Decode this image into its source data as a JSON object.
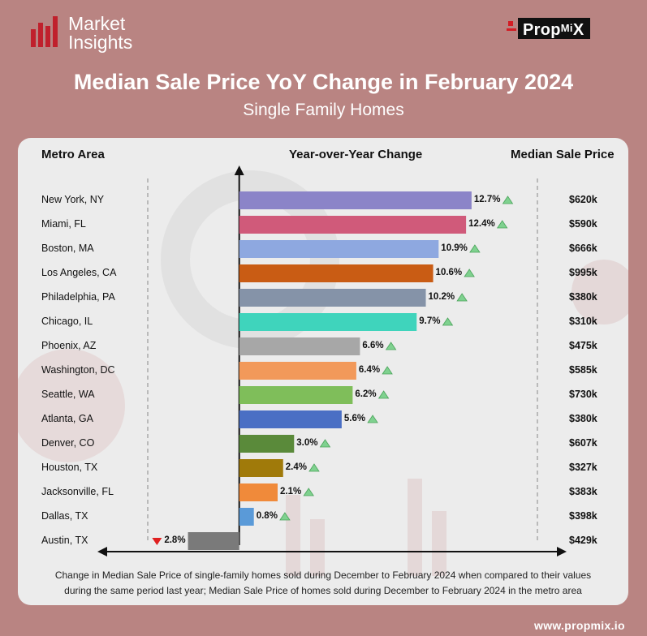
{
  "logo": {
    "line1": "Market",
    "line2": "Insights"
  },
  "brand": {
    "part1": "Prop",
    "part2": "Mi",
    "part3": "X"
  },
  "title": "Median Sale Price YoY Change in February 2024",
  "subtitle": "Single Family Homes",
  "headers": {
    "metro": "Metro Area",
    "yoy": "Year-over-Year Change",
    "price": "Median Sale Price"
  },
  "note": {
    "line1": "Change in Median Sale Price of single-family homes sold during December to February 2024 when compared to their values",
    "line2": "during the same period last year; Median Sale Price of homes sold during December to February 2024 in the metro area"
  },
  "website": "www.propmix.io",
  "colors": {
    "background": "#b98482",
    "card": "#ececec",
    "up": "#7fd18f",
    "down": "#e02020"
  },
  "chart_data": {
    "type": "bar",
    "orientation": "horizontal",
    "xlabel": "Year-over-Year Change",
    "unit": "%",
    "categories": [
      "New York, NY",
      "Miami, FL",
      "Boston, MA",
      "Los Angeles, CA",
      "Philadelphia, PA",
      "Chicago, IL",
      "Phoenix, AZ",
      "Washington, DC",
      "Seattle, WA",
      "Atlanta, GA",
      "Denver, CO",
      "Houston, TX",
      "Jacksonville, FL",
      "Dallas, TX",
      "Austin, TX"
    ],
    "values": [
      12.7,
      12.4,
      10.9,
      10.6,
      10.2,
      9.7,
      6.6,
      6.4,
      6.2,
      5.6,
      3.0,
      2.4,
      2.1,
      0.8,
      -2.8
    ],
    "labels": [
      "12.7%",
      "12.4%",
      "10.9%",
      "10.6%",
      "10.2%",
      "9.7%",
      "6.6%",
      "6.4%",
      "6.2%",
      "5.6%",
      "3.0%",
      "2.4%",
      "2.1%",
      "0.8%",
      "2.8%"
    ],
    "median_sale_price": [
      "$620k",
      "$590k",
      "$666k",
      "$995k",
      "$380k",
      "$310k",
      "$475k",
      "$585k",
      "$730k",
      "$380k",
      "$607k",
      "$327k",
      "$383k",
      "$398k",
      "$429k"
    ],
    "bar_colors": [
      "#8b84c8",
      "#d05a7a",
      "#8ea8e0",
      "#c95c14",
      "#8593a8",
      "#3fd4bc",
      "#a7a7a7",
      "#f2995a",
      "#7fbe5a",
      "#4a6fc4",
      "#5a8a3a",
      "#a07a0a",
      "#f08a3a",
      "#5a9ad8",
      "#7a7a7a"
    ],
    "xlim": [
      -5,
      16.3
    ],
    "grid": false
  }
}
